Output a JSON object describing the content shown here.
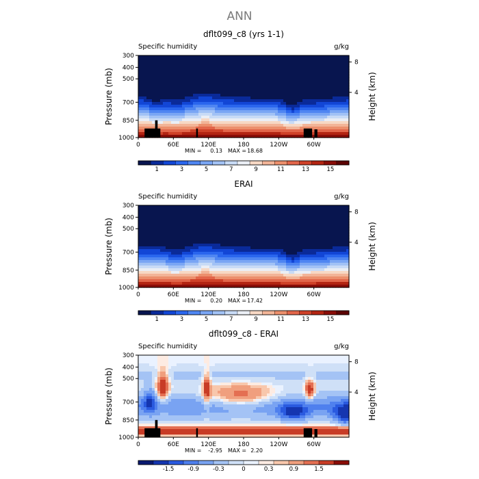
{
  "figure": {
    "main_title": "ANN",
    "colors": {
      "humidity_levels": [
        "#08154f",
        "#0a2a99",
        "#1246d6",
        "#2a66ee",
        "#4f86f2",
        "#7aa6f4",
        "#a2c2f5",
        "#c8dbf6",
        "#eaeef5",
        "#f7d8c4",
        "#f2b497",
        "#ec8f6c",
        "#e2664a",
        "#cf4128",
        "#b32412",
        "#8a0d08",
        "#5c0404"
      ],
      "difference_levels": [
        "#0a1a70",
        "#1536b0",
        "#2a5ae0",
        "#4f80ee",
        "#79a3f2",
        "#a4c3f5",
        "#cfe0f7",
        "#eaf2ff",
        "#fdebe2",
        "#f8c7ac",
        "#f09f7e",
        "#e46f52",
        "#c83c26",
        "#8a0d08"
      ],
      "land_mask": "#000000"
    }
  },
  "chart_data": [
    {
      "type": "heatmap",
      "title": "dflt099_c8 (yrs 1-1)",
      "subtitle_left": "Specific humidity",
      "subtitle_right": "g/kg",
      "ylabel": "Pressure (mb)",
      "ylabel_right": "Height (km)",
      "y_ticks": [
        "300",
        "400",
        "500",
        "700",
        "850",
        "1000"
      ],
      "y_right_ticks": [
        "8",
        "4"
      ],
      "x_ticks": [
        "0",
        "60E",
        "120E",
        "180",
        "120W",
        "60W"
      ],
      "min_label": "MIN =",
      "min_value": "0.13",
      "max_label": "MAX =",
      "max_value": "18.68",
      "colorbar_labels": [
        "1",
        "3",
        "5",
        "7",
        "9",
        "11",
        "13",
        "15"
      ]
    },
    {
      "type": "heatmap",
      "title": "ERAI",
      "subtitle_left": "Specific humidity",
      "subtitle_right": "g/kg",
      "ylabel": "Pressure (mb)",
      "ylabel_right": "Height (km)",
      "y_ticks": [
        "300",
        "400",
        "500",
        "700",
        "850",
        "1000"
      ],
      "y_right_ticks": [
        "8",
        "4"
      ],
      "x_ticks": [
        "0",
        "60E",
        "120E",
        "180",
        "120W",
        "60W"
      ],
      "min_label": "MIN =",
      "min_value": "0.20",
      "max_label": "MAX =",
      "max_value": "17.42",
      "colorbar_labels": [
        "1",
        "3",
        "5",
        "7",
        "9",
        "11",
        "13",
        "15"
      ]
    },
    {
      "type": "heatmap",
      "title": "dflt099_c8 - ERAI",
      "subtitle_left": "Specific humidity",
      "subtitle_right": "g/kg",
      "ylabel": "Pressure (mb)",
      "ylabel_right": "Height (km)",
      "y_ticks": [
        "300",
        "400",
        "500",
        "700",
        "850",
        "1000"
      ],
      "y_right_ticks": [
        "8",
        "4"
      ],
      "x_ticks": [
        "0",
        "60E",
        "120E",
        "180",
        "120W",
        "60W"
      ],
      "min_label": "MIN =",
      "min_value": "-2.95",
      "max_label": "MAX =",
      "max_value": "2.20",
      "colorbar_labels": [
        "-1.5",
        "-0.9",
        "-0.3",
        "0",
        "0.3",
        "0.9",
        "1.5"
      ]
    }
  ]
}
